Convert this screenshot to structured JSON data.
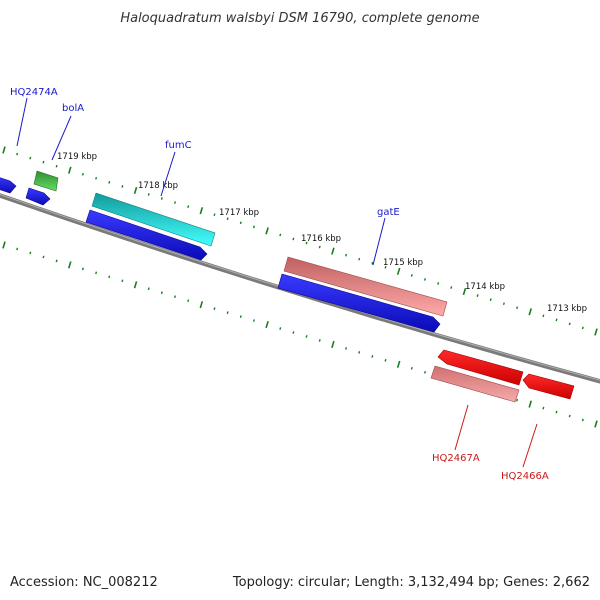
{
  "title": "Haloquadratum walsbyi DSM 16790, complete genome",
  "footer": {
    "accession": "Accession: NC_008212",
    "summary": "Topology: circular; Length: 3,132,494 bp; Genes: 2,662"
  },
  "kbp_labels": [
    "1719 kbp",
    "1718 kbp",
    "1717 kbp",
    "1716 kbp",
    "1715 kbp",
    "1714 kbp",
    "1713 kbp"
  ],
  "gene_labels": {
    "top": [
      "HQ2474A",
      "bolA",
      "fumC",
      "gatE"
    ],
    "bottom": [
      "HQ2467A",
      "HQ2466A"
    ]
  },
  "colors": {
    "backbone": "#7f7f7f",
    "tick": "#1a7f1a",
    "label_blue": "#1a1acc",
    "label_red": "#cc1a1a",
    "gene_blue": "#1010e0",
    "gene_green": "#33bb33",
    "gene_cyan": "#22e6e6",
    "gene_salmon": "#ee8888",
    "gene_red": "#ee1010"
  }
}
